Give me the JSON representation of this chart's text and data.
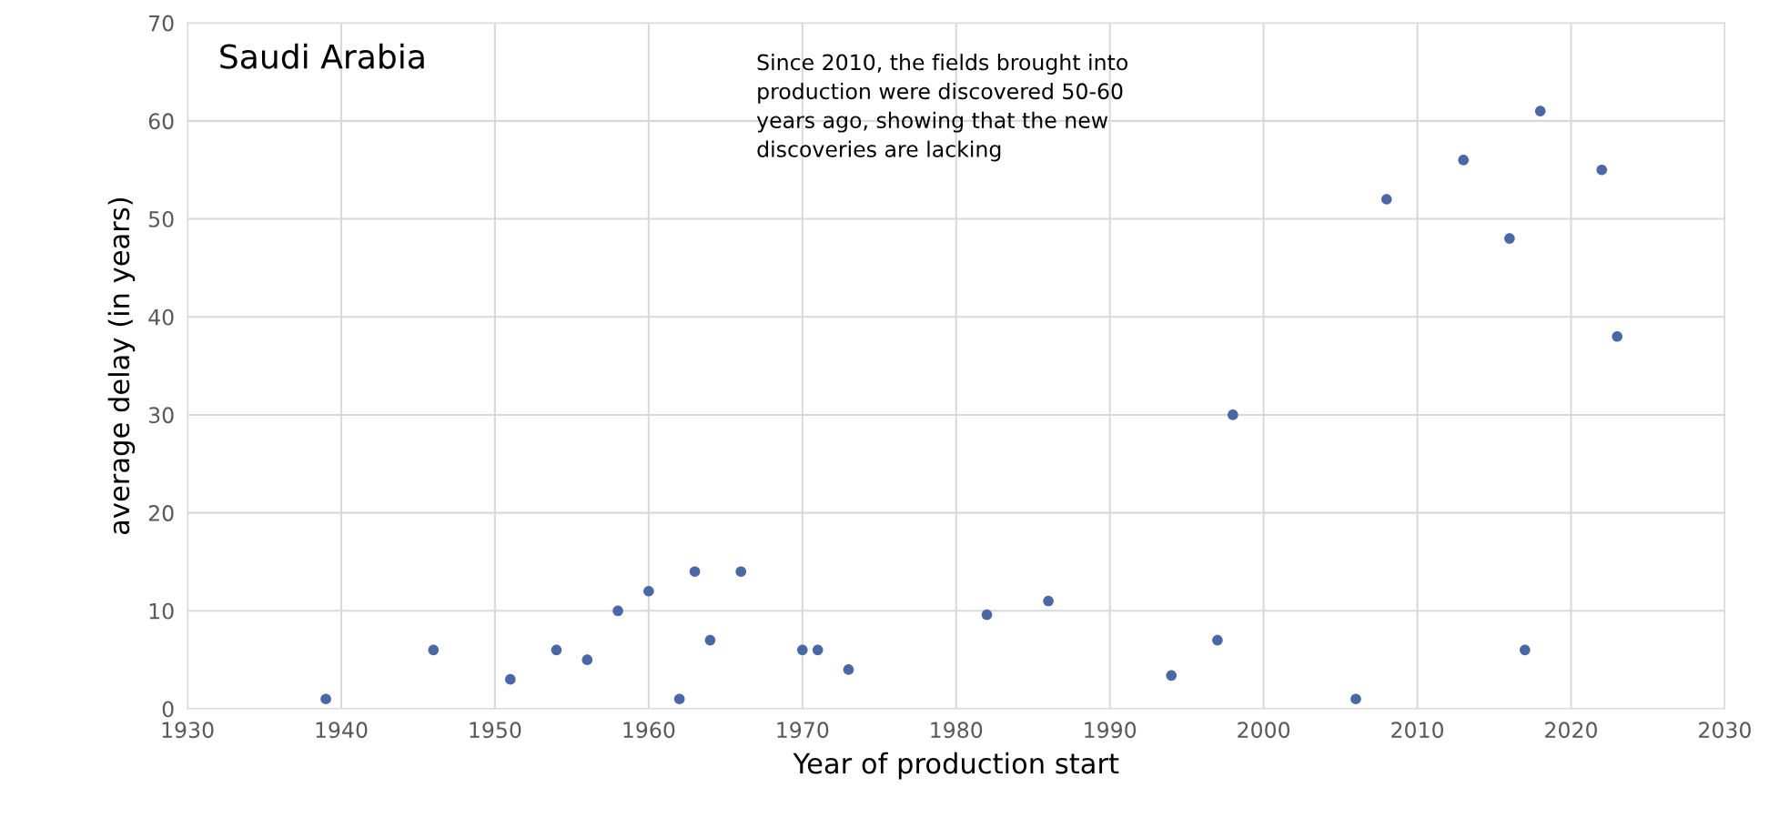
{
  "chart_data": {
    "type": "scatter",
    "xlabel": "Year of production start",
    "ylabel": "average delay (in years)",
    "annotations": [
      "Saudi Arabia",
      "Since 2010, the fields brought into\nproduction were discovered 50-60\nyears ago, showing that the new\ndiscoveries are lacking"
    ],
    "x": [
      1939,
      1946,
      1951,
      1954,
      1956,
      1958,
      1960,
      1962,
      1963,
      1964,
      1966,
      1970,
      1971,
      1973,
      1982,
      1986,
      1994,
      1997,
      1998,
      2006,
      2008,
      2013,
      2016,
      2017,
      2018,
      2022,
      2023
    ],
    "series": [
      {
        "color": "#4a68a6",
        "values": [
          1,
          6,
          3,
          6,
          5,
          10,
          12,
          1,
          14,
          7,
          14,
          6,
          6,
          4,
          9.6,
          11,
          3.4,
          7,
          30,
          1,
          52,
          56,
          48,
          6,
          61,
          55,
          38
        ]
      }
    ],
    "xlim": [
      1930,
      2030
    ],
    "xticks": [
      1930,
      1940,
      1950,
      1960,
      1970,
      1980,
      1990,
      2000,
      2010,
      2020,
      2030
    ],
    "ylim": [
      0,
      70
    ],
    "yticks": [
      0,
      10,
      20,
      30,
      40,
      50,
      60,
      70
    ],
    "grid": true,
    "marker": "circle"
  }
}
